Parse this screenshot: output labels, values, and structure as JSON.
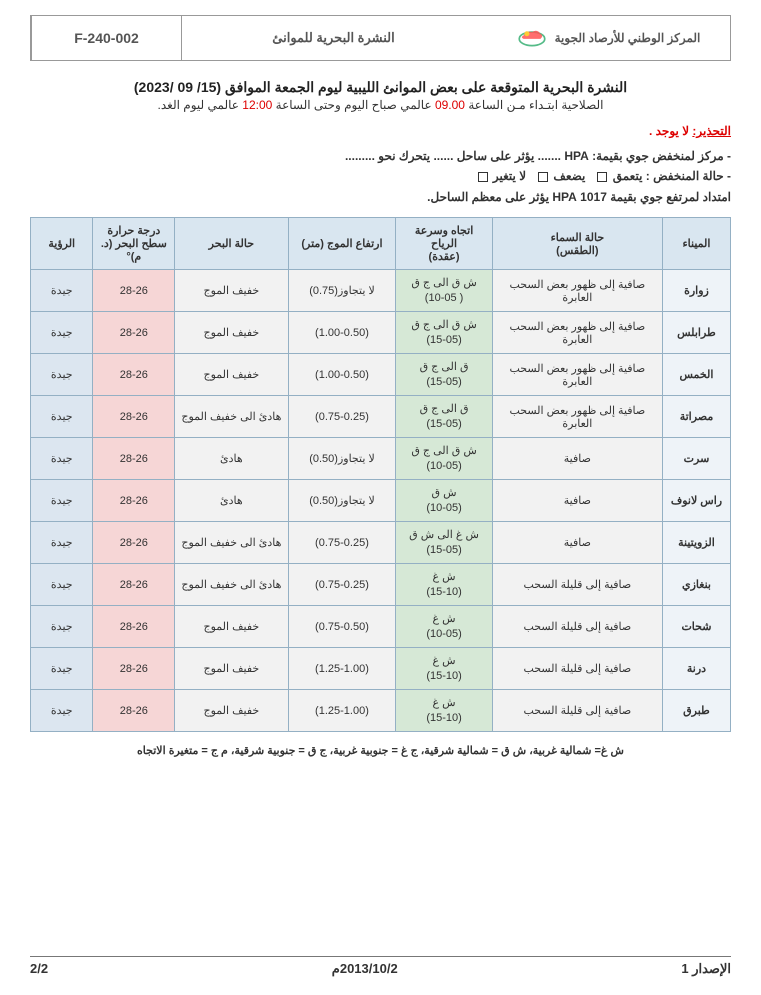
{
  "header": {
    "org_name": "المركز الوطني للأرصاد الجوية",
    "doc_title": "النشرة البحرية للموانئ",
    "code": "F-240-002"
  },
  "title": {
    "main": "النشرة البحرية المتوقعة على بعض الموانئ الليبية ليوم الجمعة الموافق (15/ 09 /2023)",
    "sub_pre": "الصلاحية ابتـداء مـن الساعة ",
    "sub_t1": "09.00",
    "sub_mid": " عالمي صباح اليوم وحتى الساعة ",
    "sub_t2": "12:00",
    "sub_post": " عالمي ليوم الغد."
  },
  "warning_label": "التحذير:",
  "warning_text": " لا يوجد .",
  "info": {
    "line1_pre": "- مركز لمنخفض جوي بقيمة: ",
    "line1_hpa": "HPA",
    "line1_mid": " .......  يؤثر على ساحل ...... يتحرك نحو .........",
    "line2_pre": "- حالة المنخفض  :   يتعمق",
    "line2_opt2": "يضعف",
    "line2_opt3": "لا يتغير",
    "line3": "امتداد لمرتفع جوي بقيمة  1017 HPA  يؤثر على معظم الساحل."
  },
  "columns": {
    "port": "الميناء",
    "sky": "حالة السماء\n(الطقس)",
    "wind": "اتجاه وسرعة الرياح\n(عقدة)",
    "wave": "ارتفاع الموج (متر)",
    "sea": "حالة البحر",
    "temp": "درجة حرارة سطح البحر (د. م)°",
    "vis": "الرؤية"
  },
  "rows": [
    {
      "port": "زوارة",
      "sky": "صافية إلى ظهور بعض السحب العابرة",
      "wind": "ش ق الى ج ق\n( 10-05)",
      "wave": "لا يتجاوز(0.75)",
      "sea": "خفيف الموج",
      "temp": "28-26",
      "vis": "جيدة"
    },
    {
      "port": "طرابلس",
      "sky": "صافية إلى ظهور بعض السحب العابرة",
      "wind": "ش ق الى ج ق\n(15-05)",
      "wave": "(1.00-0.50)",
      "sea": "خفيف الموج",
      "temp": "28-26",
      "vis": "جيدة"
    },
    {
      "port": "الخمس",
      "sky": "صافية إلى ظهور بعض السحب العابرة",
      "wind": "ق الى ج ق\n(15-05)",
      "wave": "(1.00-0.50)",
      "sea": "خفيف الموج",
      "temp": "28-26",
      "vis": "جيدة"
    },
    {
      "port": "مصراتة",
      "sky": "صافية إلى ظهور بعض السحب العابرة",
      "wind": "ق الى ج ق\n(15-05)",
      "wave": "(0.75-0.25)",
      "sea": "هادئ الى خفيف الموج",
      "temp": "28-26",
      "vis": "جيدة"
    },
    {
      "port": "سرت",
      "sky": "صافية",
      "wind": "ش ق الى ج ق\n(10-05)",
      "wave": "لا يتجاوز(0.50)",
      "sea": "هادئ",
      "temp": "28-26",
      "vis": "جيدة"
    },
    {
      "port": "راس لانوف",
      "sky": "صافية",
      "wind": "ش ق\n(10-05)",
      "wave": "لا يتجاوز(0.50)",
      "sea": "هادئ",
      "temp": "28-26",
      "vis": "جيدة"
    },
    {
      "port": "الزويتينة",
      "sky": "صافية",
      "wind": "ش غ الى ش ق\n(15-05)",
      "wave": "(0.75-0.25)",
      "sea": "هادئ الى خفيف الموج",
      "temp": "28-26",
      "vis": "جيدة"
    },
    {
      "port": "بنغازي",
      "sky": "صافية إلى قليلة السحب",
      "wind": "ش غ\n(15-10)",
      "wave": "(0.75-0.25)",
      "sea": "هادئ الى خفيف الموج",
      "temp": "28-26",
      "vis": "جيدة"
    },
    {
      "port": "شحات",
      "sky": "صافية إلى قليلة السحب",
      "wind": "ش غ\n(10-05)",
      "wave": "(0.75-0.50)",
      "sea": "خفيف الموج",
      "temp": "28-26",
      "vis": "جيدة"
    },
    {
      "port": "درنة",
      "sky": "صافية إلى قليلة السحب",
      "wind": "ش غ\n(15-10)",
      "wave": "(1.25-1.00)",
      "sea": "خفيف الموج",
      "temp": "28-26",
      "vis": "جيدة"
    },
    {
      "port": "طبرق",
      "sky": "صافية إلى قليلة السحب",
      "wind": "ش غ\n(15-10)",
      "wave": "(1.25-1.00)",
      "sea": "خفيف الموج",
      "temp": "28-26",
      "vis": "جيدة"
    }
  ],
  "legend": "ش غ= شمالية غربية، ش ق = شمالية شرقية، ج غ = جنوبية غربية، ج ق = جنوبية شرقية، م ج = متغيرة الاتجاه",
  "footer": {
    "issue": "الإصدار 1",
    "date": "2013/10/2م",
    "page": "2/2"
  },
  "style": {
    "header_bg": "#d9e6f0",
    "wind_bg": "#d6e8d6",
    "temp_bg": "#f6d6d6",
    "vis_bg": "#dce6f0",
    "row_bg": "#f2f2f2",
    "border": "#94b0c4",
    "red": "#d00"
  }
}
